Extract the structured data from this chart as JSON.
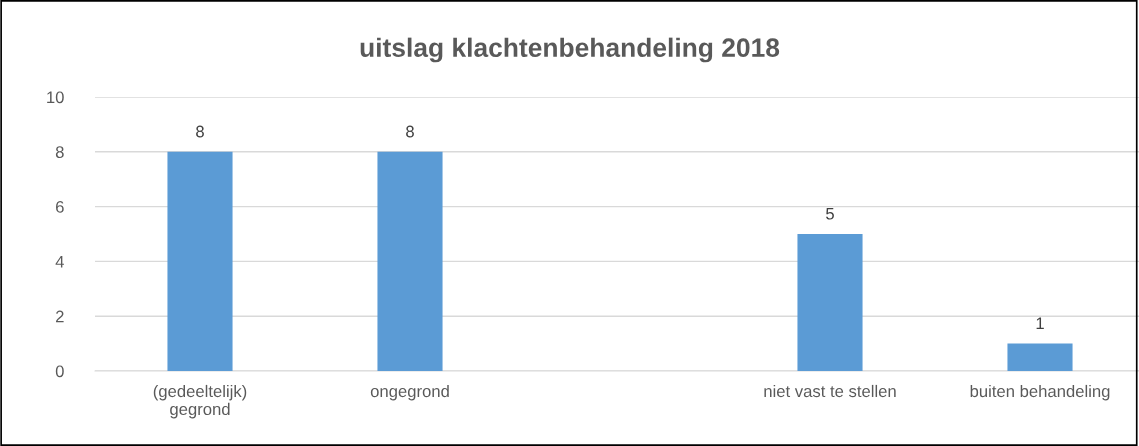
{
  "chart_data": {
    "type": "bar",
    "title": "uitslag klachtenbehandeling 2018",
    "categories": [
      "(gedeeltelijk)\ngegrond",
      "ongegrond",
      null,
      "niet vast te stellen",
      "buiten behandeling"
    ],
    "values": [
      8,
      8,
      null,
      5,
      1
    ],
    "color": "#5b9bd5",
    "ylim": [
      0,
      10
    ],
    "yticks": [
      0,
      2,
      4,
      6,
      8,
      10
    ],
    "grid": "y",
    "data_labels": true
  }
}
